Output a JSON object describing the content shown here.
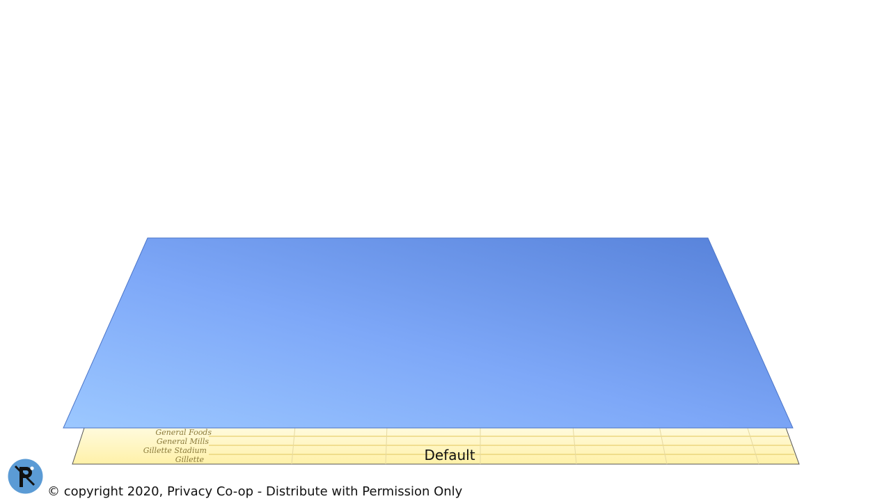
{
  "table_layer": {
    "rows": [
      {
        "label": "General Foods"
      },
      {
        "label": "General Mills"
      },
      {
        "label": "Gillette Stadium"
      },
      {
        "label": "Gillette"
      }
    ],
    "layer_label": "Default"
  },
  "overlay": {
    "gradient_start": "#9cc8ff",
    "gradient_mid": "#7ea8f8",
    "gradient_end": "#5580d8"
  },
  "footer": {
    "logo_icon": "privacy-coop-logo-icon",
    "copyright": "© copyright 2020, Privacy Co-op - Distribute with Permission Only"
  }
}
